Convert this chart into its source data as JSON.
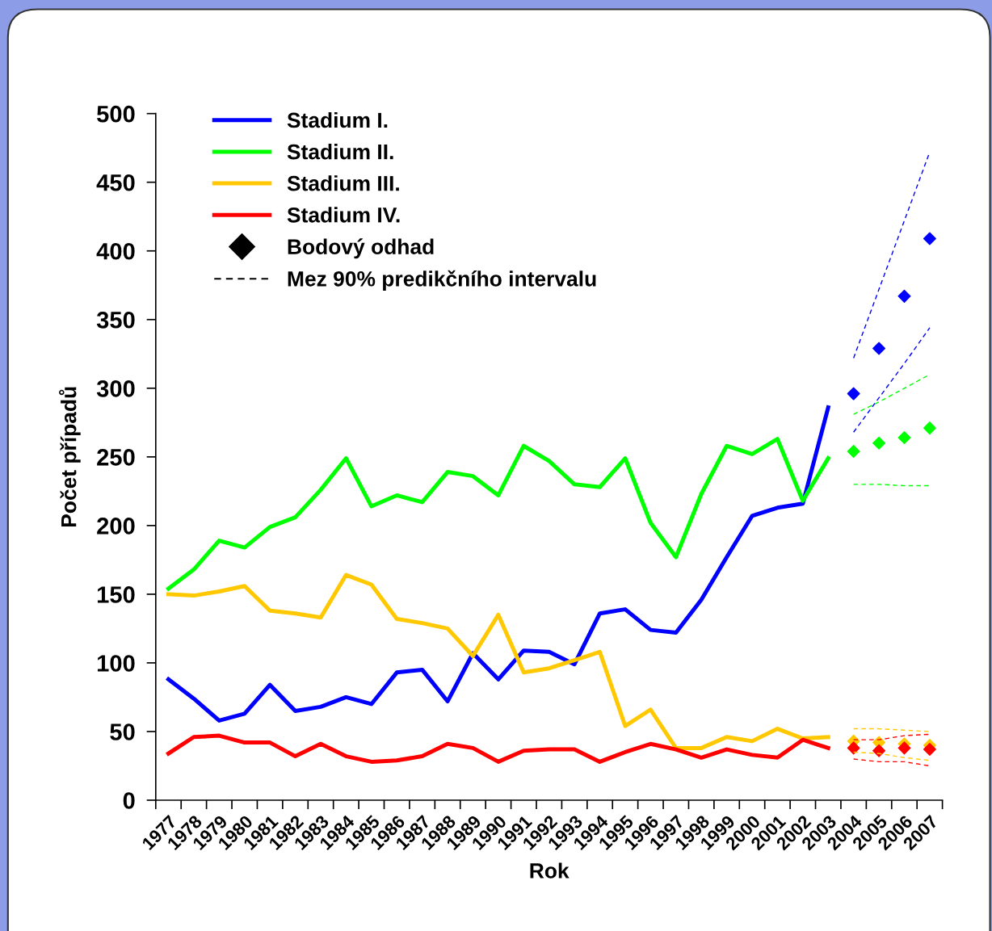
{
  "chart_data": {
    "type": "line",
    "xlabel": "Rok",
    "ylabel": "Počet případů",
    "categories": [
      "1977",
      "1978",
      "1979",
      "1980",
      "1981",
      "1982",
      "1983",
      "1984",
      "1985",
      "1986",
      "1987",
      "1988",
      "1989",
      "1990",
      "1991",
      "1992",
      "1993",
      "1994",
      "1995",
      "1996",
      "1997",
      "1998",
      "1999",
      "2000",
      "2001",
      "2002",
      "2003",
      "2004",
      "2005",
      "2006",
      "2007"
    ],
    "ylim": [
      0,
      500
    ],
    "yticks": [
      0,
      50,
      100,
      150,
      200,
      250,
      300,
      350,
      400,
      450,
      500
    ],
    "grid": false,
    "legend": "top left",
    "annotations": [
      "Bodový odhad",
      "Mez 90% predikčního intervalu"
    ],
    "series": [
      {
        "name": "Stadium I.",
        "color": "#0000ff",
        "values": [
          88,
          74,
          58,
          63,
          84,
          65,
          68,
          75,
          70,
          93,
          95,
          72,
          107,
          88,
          109,
          108,
          99,
          136,
          139,
          124,
          122,
          146,
          177,
          207,
          213,
          216,
          286,
          null,
          null,
          null,
          null
        ]
      },
      {
        "name": "Stadium II.",
        "color": "#00ff00",
        "values": [
          154,
          168,
          189,
          184,
          199,
          206,
          226,
          249,
          214,
          222,
          217,
          239,
          236,
          222,
          258,
          247,
          230,
          228,
          249,
          202,
          177,
          223,
          258,
          252,
          263,
          218,
          249,
          null,
          null,
          null,
          null
        ]
      },
      {
        "name": "Stadium III.",
        "color": "#ffc800",
        "values": [
          150,
          149,
          152,
          156,
          138,
          136,
          133,
          164,
          157,
          132,
          129,
          125,
          105,
          135,
          93,
          96,
          102,
          108,
          54,
          66,
          38,
          38,
          46,
          43,
          52,
          45,
          46,
          null,
          null,
          null,
          null
        ]
      },
      {
        "name": "Stadium IV.",
        "color": "#ff0000",
        "values": [
          34,
          46,
          47,
          42,
          42,
          32,
          41,
          32,
          28,
          29,
          32,
          41,
          38,
          28,
          36,
          37,
          37,
          28,
          35,
          41,
          37,
          31,
          37,
          33,
          31,
          44,
          38,
          null,
          null,
          null,
          null
        ]
      },
      {
        "type": "scatter",
        "marker": "diamond",
        "color": "#0000ff",
        "values": [
          null,
          null,
          null,
          null,
          null,
          null,
          null,
          null,
          null,
          null,
          null,
          null,
          null,
          null,
          null,
          null,
          null,
          null,
          null,
          null,
          null,
          null,
          null,
          null,
          null,
          null,
          null,
          296,
          329,
          367,
          409
        ]
      },
      {
        "type": "scatter",
        "marker": "diamond",
        "color": "#00ff00",
        "values": [
          null,
          null,
          null,
          null,
          null,
          null,
          null,
          null,
          null,
          null,
          null,
          null,
          null,
          null,
          null,
          null,
          null,
          null,
          null,
          null,
          null,
          null,
          null,
          null,
          null,
          null,
          null,
          254,
          260,
          264,
          271
        ]
      },
      {
        "type": "scatter",
        "marker": "diamond",
        "color": "#ffc800",
        "values": [
          null,
          null,
          null,
          null,
          null,
          null,
          null,
          null,
          null,
          null,
          null,
          null,
          null,
          null,
          null,
          null,
          null,
          null,
          null,
          null,
          null,
          null,
          null,
          null,
          null,
          null,
          null,
          43,
          42,
          41,
          40
        ]
      },
      {
        "type": "scatter",
        "marker": "diamond",
        "color": "#ff0000",
        "values": [
          null,
          null,
          null,
          null,
          null,
          null,
          null,
          null,
          null,
          null,
          null,
          null,
          null,
          null,
          null,
          null,
          null,
          null,
          null,
          null,
          null,
          null,
          null,
          null,
          null,
          null,
          null,
          38,
          36,
          38,
          37
        ]
      },
      {
        "line_style": "dashed",
        "color": "#0000ff",
        "values": [
          null,
          null,
          null,
          null,
          null,
          null,
          null,
          null,
          null,
          null,
          null,
          null,
          null,
          null,
          null,
          null,
          null,
          null,
          null,
          null,
          null,
          null,
          null,
          null,
          null,
          null,
          null,
          322,
          372,
          422,
          472
        ]
      },
      {
        "line_style": "dashed",
        "color": "#0000ff",
        "values": [
          null,
          null,
          null,
          null,
          null,
          null,
          null,
          null,
          null,
          null,
          null,
          null,
          null,
          null,
          null,
          null,
          null,
          null,
          null,
          null,
          null,
          null,
          null,
          null,
          null,
          null,
          null,
          268,
          293,
          318,
          344
        ]
      },
      {
        "line_style": "dashed",
        "color": "#00ff00",
        "values": [
          null,
          null,
          null,
          null,
          null,
          null,
          null,
          null,
          null,
          null,
          null,
          null,
          null,
          null,
          null,
          null,
          null,
          null,
          null,
          null,
          null,
          null,
          null,
          null,
          null,
          null,
          null,
          281,
          290,
          300,
          310
        ]
      },
      {
        "line_style": "dashed",
        "color": "#00ff00",
        "values": [
          null,
          null,
          null,
          null,
          null,
          null,
          null,
          null,
          null,
          null,
          null,
          null,
          null,
          null,
          null,
          null,
          null,
          null,
          null,
          null,
          null,
          null,
          null,
          null,
          null,
          null,
          null,
          230,
          230,
          229,
          229
        ]
      },
      {
        "line_style": "dashed",
        "color": "#ffc800",
        "values": [
          null,
          null,
          null,
          null,
          null,
          null,
          null,
          null,
          null,
          null,
          null,
          null,
          null,
          null,
          null,
          null,
          null,
          null,
          null,
          null,
          null,
          null,
          null,
          null,
          null,
          null,
          null,
          52,
          52,
          51,
          50
        ]
      },
      {
        "line_style": "dashed",
        "color": "#ffc800",
        "values": [
          null,
          null,
          null,
          null,
          null,
          null,
          null,
          null,
          null,
          null,
          null,
          null,
          null,
          null,
          null,
          null,
          null,
          null,
          null,
          null,
          null,
          null,
          null,
          null,
          null,
          null,
          null,
          35,
          34,
          31,
          29
        ]
      },
      {
        "line_style": "dashed",
        "color": "#ff0000",
        "values": [
          null,
          null,
          null,
          null,
          null,
          null,
          null,
          null,
          null,
          null,
          null,
          null,
          null,
          null,
          null,
          null,
          null,
          null,
          null,
          null,
          null,
          null,
          null,
          null,
          null,
          null,
          null,
          44,
          44,
          47,
          48
        ]
      },
      {
        "line_style": "dashed",
        "color": "#ff0000",
        "values": [
          null,
          null,
          null,
          null,
          null,
          null,
          null,
          null,
          null,
          null,
          null,
          null,
          null,
          null,
          null,
          null,
          null,
          null,
          null,
          null,
          null,
          null,
          null,
          null,
          null,
          null,
          null,
          30,
          28,
          28,
          25
        ]
      }
    ]
  }
}
